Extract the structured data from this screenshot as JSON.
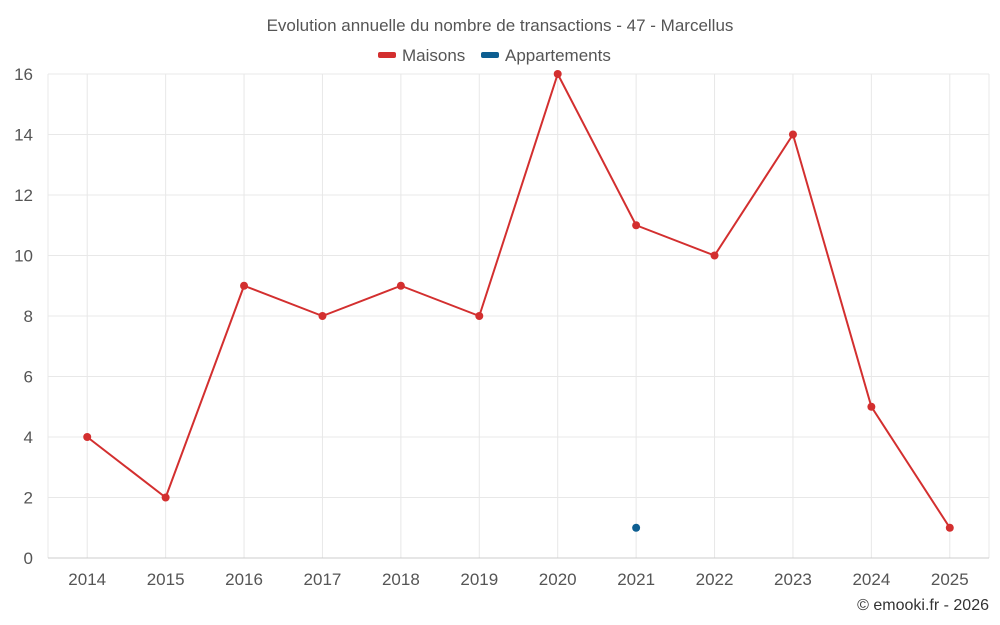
{
  "chart_data": {
    "type": "line",
    "title": "Evolution annuelle du nombre de transactions - 47 - Marcellus",
    "categories": [
      "2014",
      "2015",
      "2016",
      "2017",
      "2018",
      "2019",
      "2020",
      "2021",
      "2022",
      "2023",
      "2024",
      "2025"
    ],
    "ylim": [
      0,
      16
    ],
    "yticks": [
      0,
      2,
      4,
      6,
      8,
      10,
      12,
      14,
      16
    ],
    "ytick_labels": [
      "0",
      "2",
      "4",
      "6",
      "8",
      "10",
      "12",
      "14",
      "16"
    ],
    "grid": true,
    "legend_position": "top-center",
    "series": [
      {
        "name": "Maisons",
        "color": "#d32f2f",
        "values": [
          4,
          2,
          9,
          8,
          9,
          8,
          16,
          11,
          10,
          14,
          5,
          1
        ]
      },
      {
        "name": "Appartements",
        "color": "#0d5e91",
        "values": [
          null,
          null,
          null,
          null,
          null,
          null,
          null,
          1,
          null,
          null,
          null,
          null
        ]
      }
    ],
    "credit": "© emooki.fr - 2026"
  }
}
